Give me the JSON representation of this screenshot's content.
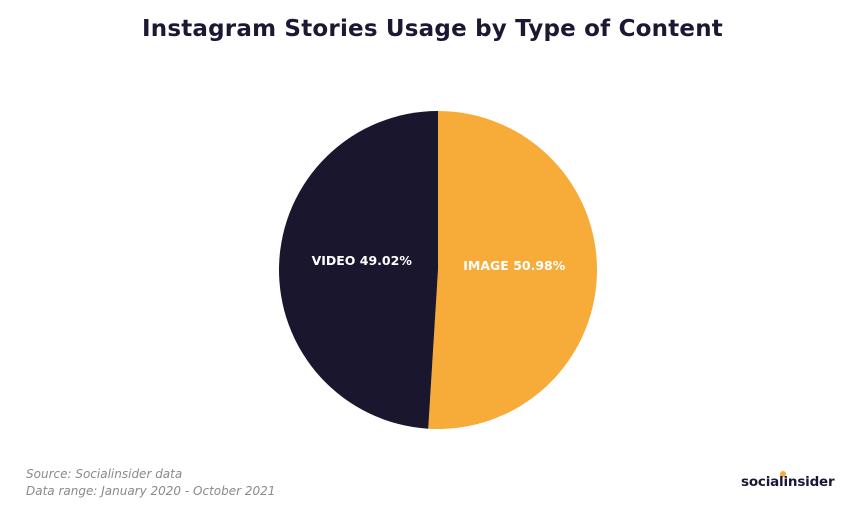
{
  "chart_data": {
    "type": "pie",
    "title": "Instagram Stories Usage by Type of Content",
    "slices": [
      {
        "name": "IMAGE",
        "value": 50.98,
        "label": "IMAGE 50.98%",
        "color": "#f7ac3a"
      },
      {
        "name": "VIDEO",
        "value": 49.02,
        "label": "VIDEO 49.02%",
        "color": "#19162e"
      }
    ]
  },
  "footer": {
    "source": "Source: Socialinsider data",
    "range": "Data range: January 2020 - October  2021"
  },
  "brand": {
    "name": "socialinsider"
  }
}
